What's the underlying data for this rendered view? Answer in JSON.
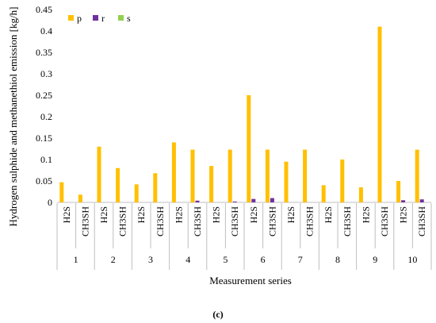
{
  "chart_data": {
    "type": "bar",
    "title": "",
    "ylabel": "Hydrogen sulphide and methanethiol emission [kg/h]",
    "xlabel": "Measurement series",
    "ylim": [
      0,
      0.45
    ],
    "yticks": [
      "0",
      "0.05",
      "0.1",
      "0.15",
      "0.2",
      "0.25",
      "0.3",
      "0.35",
      "0.4",
      "0.45"
    ],
    "grid": false,
    "legend_position": "top-left",
    "groups": [
      "1",
      "2",
      "3",
      "4",
      "5",
      "6",
      "7",
      "8",
      "9",
      "10"
    ],
    "categories": [
      "H2S",
      "CH3SH"
    ],
    "series": [
      {
        "name": "p",
        "color": "#FFC000",
        "values": [
          [
            0.047,
            0.018
          ],
          [
            0.13,
            0.08
          ],
          [
            0.042,
            0.068
          ],
          [
            0.14,
            0.123
          ],
          [
            0.085,
            0.123
          ],
          [
            0.25,
            0.123
          ],
          [
            0.095,
            0.123
          ],
          [
            0.04,
            0.1
          ],
          [
            0.035,
            0.41
          ],
          [
            0.05,
            0.123
          ]
        ]
      },
      {
        "name": "r",
        "color": "#7030A0",
        "values": [
          [
            0.0,
            0.0
          ],
          [
            0.0,
            0.0
          ],
          [
            0.0,
            0.0
          ],
          [
            0.0,
            0.004
          ],
          [
            0.0,
            0.002
          ],
          [
            0.008,
            0.01
          ],
          [
            0.0,
            0.0
          ],
          [
            0.0,
            0.0
          ],
          [
            0.0,
            0.0
          ],
          [
            0.005,
            0.007
          ]
        ]
      },
      {
        "name": "s",
        "color": "#92D050",
        "values": [
          [
            0,
            0
          ],
          [
            0,
            0
          ],
          [
            0,
            0
          ],
          [
            0,
            0
          ],
          [
            0,
            0
          ],
          [
            0,
            0
          ],
          [
            0,
            0
          ],
          [
            0,
            0
          ],
          [
            0,
            0
          ],
          [
            0,
            0
          ]
        ]
      }
    ]
  },
  "caption": "(c)"
}
